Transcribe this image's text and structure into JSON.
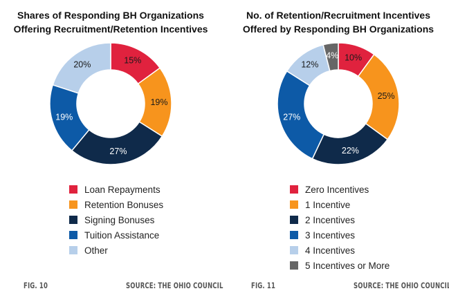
{
  "chart_data": [
    {
      "type": "pie",
      "title_lines": [
        "Shares of Responding BH Organizations",
        "Offering Recruitment/Retention Incentives"
      ],
      "categories": [
        "Loan Repayments",
        "Retention Bonuses",
        "Signing Bonuses",
        "Tuition Assistance",
        "Other"
      ],
      "values": [
        15,
        19,
        27,
        19,
        20
      ],
      "labels": [
        "15%",
        "19%",
        "27%",
        "19%",
        "20%"
      ],
      "colors": [
        "#e0223e",
        "#f7941d",
        "#0f2a4a",
        "#0d5aa7",
        "#b7cfea"
      ],
      "label_colors": [
        "#1a1a1a",
        "#1a1a1a",
        "#ffffff",
        "#ffffff",
        "#1a1a1a"
      ],
      "figure": "FIG. 10",
      "source": "SOURCE: THE OHIO COUNCIL"
    },
    {
      "type": "pie",
      "title_lines": [
        "No. of Retention/Recruitment Incentives",
        "Offered by Responding BH Organizations"
      ],
      "categories": [
        "Zero Incentives",
        "1 Incentive",
        "2 Incentives",
        "3 Incentives",
        "4 Incentives",
        "5 Incentives or More"
      ],
      "values": [
        10,
        25,
        22,
        27,
        12,
        4
      ],
      "labels": [
        "10%",
        "25%",
        "22%",
        "27%",
        "12%",
        "4%"
      ],
      "colors": [
        "#e0223e",
        "#f7941d",
        "#0f2a4a",
        "#0d5aa7",
        "#b7cfea",
        "#666666"
      ],
      "label_colors": [
        "#1a1a1a",
        "#1a1a1a",
        "#ffffff",
        "#ffffff",
        "#1a1a1a",
        "#ffffff"
      ],
      "figure": "FIG. 11",
      "source": "SOURCE: THE OHIO COUNCIL"
    }
  ]
}
